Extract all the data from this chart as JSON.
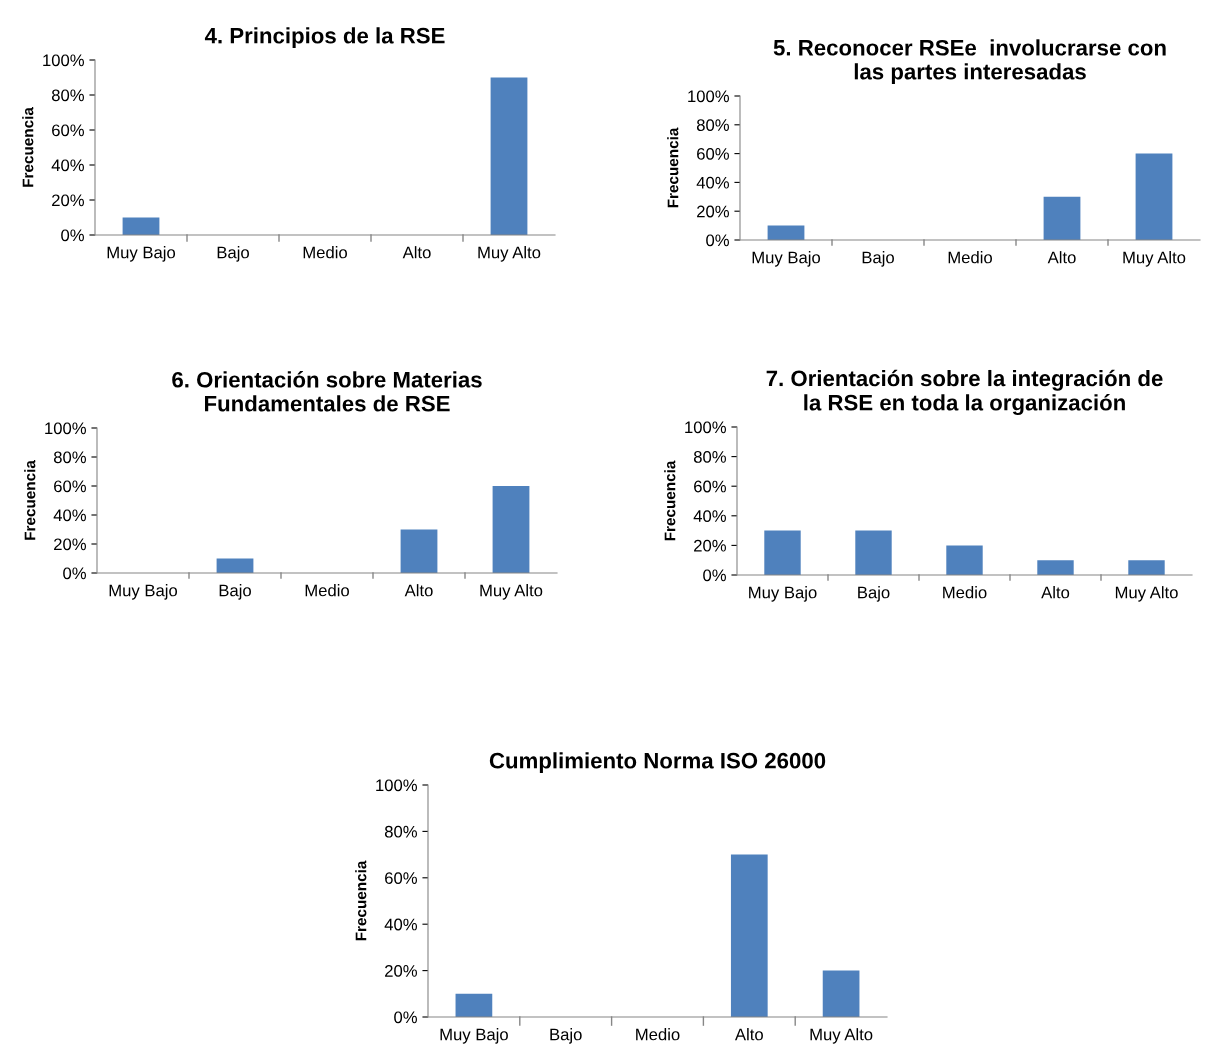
{
  "chart_data": [
    {
      "type": "bar",
      "title": "4. Principios de la RSE",
      "ylabel": "Frecuencia",
      "categories": [
        "Muy Bajo",
        "Bajo",
        "Medio",
        "Alto",
        "Muy Alto"
      ],
      "values": [
        10,
        0,
        0,
        0,
        90
      ],
      "color": "#4f81bd",
      "ylim": [
        0,
        100
      ],
      "yticks": [
        {
          "value": 0,
          "label": "0%"
        },
        {
          "value": 20,
          "label": "20%"
        },
        {
          "value": 40,
          "label": "40%"
        },
        {
          "value": 60,
          "label": "60%"
        },
        {
          "value": 80,
          "label": "80%"
        },
        {
          "value": 100,
          "label": "100%"
        }
      ],
      "grid": false,
      "legend": false
    },
    {
      "type": "bar",
      "title": "5. Reconocer RSEe  involucrarse con las partes interesadas",
      "ylabel": "Frecuencia",
      "categories": [
        "Muy Bajo",
        "Bajo",
        "Medio",
        "Alto",
        "Muy Alto"
      ],
      "values": [
        10,
        0,
        0,
        30,
        60
      ],
      "color": "#4f81bd",
      "ylim": [
        0,
        100
      ],
      "yticks": [
        {
          "value": 0,
          "label": "0%"
        },
        {
          "value": 20,
          "label": "20%"
        },
        {
          "value": 40,
          "label": "40%"
        },
        {
          "value": 60,
          "label": "60%"
        },
        {
          "value": 80,
          "label": "80%"
        },
        {
          "value": 100,
          "label": "100%"
        }
      ],
      "grid": false,
      "legend": false
    },
    {
      "type": "bar",
      "title": "6. Orientación sobre Materias Fundamentales de RSE",
      "ylabel": "Frecuencia",
      "categories": [
        "Muy Bajo",
        "Bajo",
        "Medio",
        "Alto",
        "Muy Alto"
      ],
      "values": [
        0,
        10,
        0,
        30,
        60
      ],
      "color": "#4f81bd",
      "ylim": [
        0,
        100
      ],
      "yticks": [
        {
          "value": 0,
          "label": "0%"
        },
        {
          "value": 20,
          "label": "20%"
        },
        {
          "value": 40,
          "label": "40%"
        },
        {
          "value": 60,
          "label": "60%"
        },
        {
          "value": 80,
          "label": "80%"
        },
        {
          "value": 100,
          "label": "100%"
        }
      ],
      "grid": false,
      "legend": false
    },
    {
      "type": "bar",
      "title": "7. Orientación sobre la integración de la RSE en toda la organización",
      "ylabel": "Frecuencia",
      "categories": [
        "Muy Bajo",
        "Bajo",
        "Medio",
        "Alto",
        "Muy Alto"
      ],
      "values": [
        30,
        30,
        20,
        10,
        10
      ],
      "color": "#4f81bd",
      "ylim": [
        0,
        100
      ],
      "yticks": [
        {
          "value": 0,
          "label": "0%"
        },
        {
          "value": 20,
          "label": "20%"
        },
        {
          "value": 40,
          "label": "40%"
        },
        {
          "value": 60,
          "label": "60%"
        },
        {
          "value": 80,
          "label": "80%"
        },
        {
          "value": 100,
          "label": "100%"
        }
      ],
      "grid": false,
      "legend": false
    },
    {
      "type": "bar",
      "title": "Cumplimiento Norma ISO 26000",
      "ylabel": "Frecuencia",
      "categories": [
        "Muy Bajo",
        "Bajo",
        "Medio",
        "Alto",
        "Muy Alto"
      ],
      "values": [
        10,
        0,
        0,
        70,
        20
      ],
      "color": "#4f81bd",
      "ylim": [
        0,
        100
      ],
      "yticks": [
        {
          "value": 0,
          "label": "0%"
        },
        {
          "value": 20,
          "label": "20%"
        },
        {
          "value": 40,
          "label": "40%"
        },
        {
          "value": 60,
          "label": "60%"
        },
        {
          "value": 80,
          "label": "80%"
        },
        {
          "value": 100,
          "label": "100%"
        }
      ],
      "grid": false,
      "legend": false
    }
  ]
}
